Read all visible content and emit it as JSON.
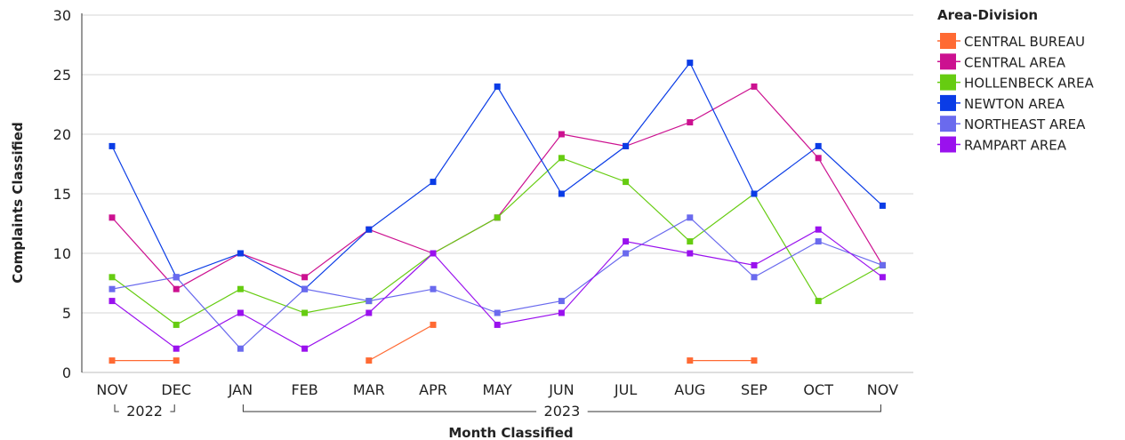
{
  "chart_data": {
    "type": "line",
    "xlabel": "Month Classified",
    "ylabel": "Complaints Classified",
    "ylim": [
      0,
      30
    ],
    "yticks": [
      0,
      5,
      10,
      15,
      20,
      25,
      30
    ],
    "grid": true,
    "legend_position": "right",
    "legend_title": "Area-Division",
    "categories": [
      "NOV",
      "DEC",
      "JAN",
      "FEB",
      "MAR",
      "APR",
      "MAY",
      "JUN",
      "JUL",
      "AUG",
      "SEP",
      "OCT",
      "NOV"
    ],
    "year_groups": [
      {
        "label": "2022",
        "start": 0,
        "end": 1
      },
      {
        "label": "2023",
        "start": 2,
        "end": 12
      }
    ],
    "series": [
      {
        "name": "CENTRAL BUREAU",
        "color": "#ff6a33",
        "values": [
          1,
          1,
          null,
          null,
          1,
          4,
          null,
          null,
          null,
          1,
          1,
          null,
          null
        ]
      },
      {
        "name": "CENTRAL AREA",
        "color": "#cc1190",
        "values": [
          13,
          7,
          10,
          8,
          12,
          10,
          13,
          20,
          19,
          21,
          24,
          18,
          9
        ]
      },
      {
        "name": "HOLLENBECK AREA",
        "color": "#66cc11",
        "values": [
          8,
          4,
          7,
          5,
          6,
          10,
          13,
          18,
          16,
          11,
          15,
          6,
          9
        ]
      },
      {
        "name": "NEWTON AREA",
        "color": "#0a3ce6",
        "values": [
          19,
          8,
          10,
          7,
          12,
          16,
          24,
          15,
          19,
          26,
          15,
          19,
          14
        ]
      },
      {
        "name": "NORTHEAST AREA",
        "color": "#6a6aee",
        "values": [
          7,
          8,
          2,
          7,
          6,
          7,
          5,
          6,
          10,
          13,
          8,
          11,
          9
        ]
      },
      {
        "name": "RAMPART AREA",
        "color": "#9a11ee",
        "values": [
          6,
          2,
          5,
          2,
          5,
          10,
          4,
          5,
          11,
          10,
          9,
          12,
          8
        ]
      }
    ]
  }
}
